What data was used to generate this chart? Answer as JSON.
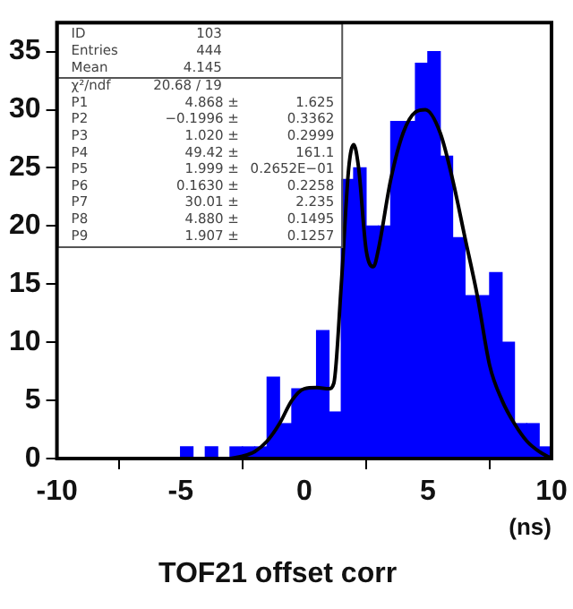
{
  "chart_data": {
    "type": "histogram",
    "title": "TOF21 offset corr",
    "xlabel": "(ns)",
    "xlim": [
      -10,
      10
    ],
    "xticks": [
      -10,
      -5,
      0,
      5,
      10
    ],
    "ylim": [
      0,
      37.5
    ],
    "yticks": [
      0,
      5,
      10,
      15,
      20,
      25,
      30,
      35
    ],
    "grid": false,
    "legend": false,
    "annotations": [
      "ID 103",
      "Entries 444",
      "Mean 4.145",
      "χ²/ndf 20.68 / 19",
      "P1 4.868 ± 1.625",
      "P2 −0.1996 ± 0.3362",
      "P3 1.020 ± 0.2999",
      "P4 49.42 ± 161.1",
      "P5 1.999 ± 0.2652E−01",
      "P6 0.1630 ± 0.2258",
      "P7 30.01 ± 2.235",
      "P8 4.880 ± 0.1495",
      "P9 1.907 ± 0.1257"
    ],
    "series": [
      {
        "color": "#0000ff",
        "bins": [
          -10,
          -9.5,
          -9,
          -8.5,
          -8,
          -7.5,
          -7,
          -6.5,
          -6,
          -5.5,
          -5,
          -4.5,
          -4,
          -3.5,
          -3,
          -2.5,
          -2,
          -1.5,
          -1,
          -0.5,
          0,
          0.5,
          1,
          1.5,
          2,
          2.5,
          3,
          3.5,
          4,
          4.5,
          5,
          5.5,
          6,
          6.5,
          7,
          7.5,
          8,
          8.5,
          9,
          9.5,
          10
        ],
        "values": [
          0,
          0,
          0,
          0,
          0,
          0,
          0,
          0,
          0,
          0,
          1,
          0,
          1,
          0,
          1,
          1,
          1,
          7,
          3,
          6,
          6,
          11,
          4,
          24,
          25,
          20,
          20,
          29,
          29,
          34,
          35,
          26,
          19,
          14,
          14,
          16,
          10,
          3,
          3,
          1
        ]
      },
      {
        "type": "line",
        "color": "#000000",
        "x": [
          -3,
          -2.5,
          -2,
          -1.5,
          -1,
          -0.5,
          0,
          0.5,
          1,
          1.2,
          1.5,
          1.8,
          2,
          2.2,
          2.5,
          2.8,
          3,
          3.5,
          4,
          4.5,
          4.9,
          5.5,
          6,
          6.5,
          7,
          7.5,
          8,
          8.5,
          9,
          9.5,
          10
        ],
        "values": [
          0,
          0.2,
          0.6,
          1.5,
          3,
          5,
          6,
          6.1,
          6,
          6.5,
          15,
          25,
          27,
          25,
          18,
          16.5,
          18,
          24,
          28,
          29.8,
          30,
          28,
          24,
          19,
          14,
          8,
          5,
          3,
          1.5,
          0.6,
          0
        ]
      }
    ]
  }
}
